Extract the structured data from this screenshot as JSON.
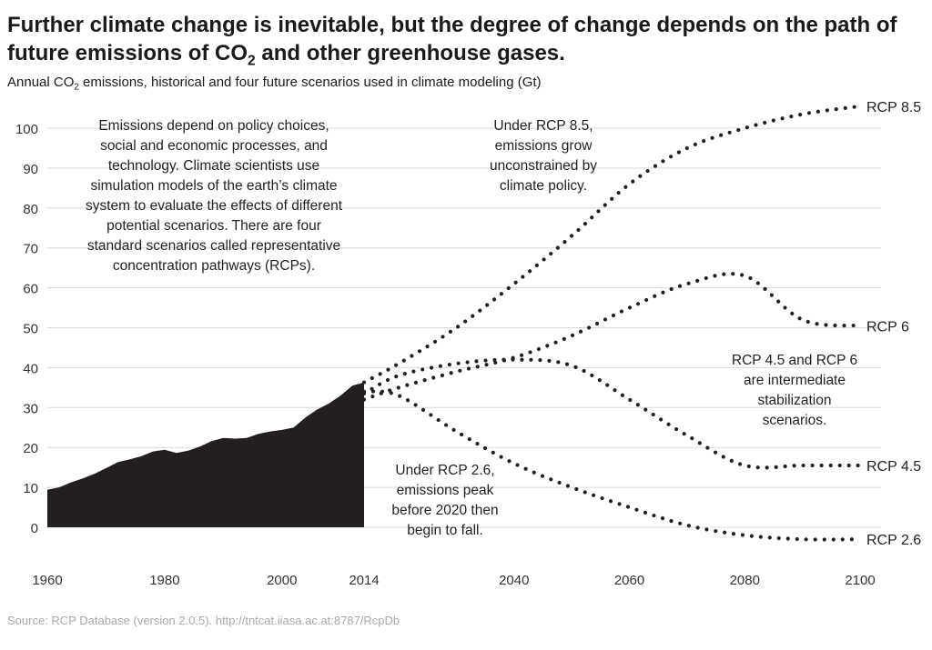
{
  "header": {
    "title_part1": "Further climate change is inevitable, but the degree of change depends on the path of future emissions of CO",
    "title_sub": "2",
    "title_part2": " and other greenhouse gases.",
    "subtitle_part1": "Annual CO",
    "subtitle_sub": "2",
    "subtitle_part2": " emissions, historical and four future scenarios used in climate modeling (Gt)"
  },
  "source": "Source: RCP Database (version 2.0.5). http://tntcat.iiasa.ac.at:8787/RcpDb",
  "colors": {
    "data": "#231f20",
    "grid": "#d9d9d9",
    "axis_text": "#333333",
    "source_text": "#a8a8a8"
  },
  "chart_data": {
    "type": "line",
    "xlabel": "",
    "ylabel": "",
    "xlim": [
      1960,
      2100
    ],
    "ylim": [
      0,
      100
    ],
    "x_ticks": [
      "1960",
      "1980",
      "2000",
      "2014",
      "2040",
      "2060",
      "2080",
      "2100"
    ],
    "y_ticks": [
      "0",
      "10",
      "20",
      "30",
      "40",
      "50",
      "60",
      "70",
      "80",
      "90",
      "100"
    ],
    "grid": true,
    "historical": {
      "style": "filled-area",
      "x": [
        1960,
        1962,
        1964,
        1966,
        1968,
        1970,
        1972,
        1974,
        1976,
        1978,
        1980,
        1982,
        1984,
        1986,
        1988,
        1990,
        1992,
        1994,
        1996,
        1998,
        2000,
        2002,
        2004,
        2006,
        2008,
        2010,
        2012,
        2014
      ],
      "y": [
        9.4,
        10.0,
        11.2,
        12.2,
        13.4,
        14.8,
        16.3,
        17.0,
        17.8,
        19.0,
        19.4,
        18.6,
        19.2,
        20.2,
        21.6,
        22.4,
        22.2,
        22.4,
        23.4,
        24.0,
        24.4,
        25.0,
        27.5,
        29.5,
        31.0,
        33.0,
        35.5,
        36.3
      ]
    },
    "series": [
      {
        "name": "RCP 8.5",
        "style": "dotted",
        "x": [
          2014,
          2020,
          2030,
          2040,
          2050,
          2060,
          2070,
          2080,
          2090,
          2100
        ],
        "y": [
          36.3,
          41,
          50,
          61,
          73,
          86,
          95,
          100,
          103.5,
          105.5
        ]
      },
      {
        "name": "RCP 6",
        "style": "dotted",
        "x": [
          2014,
          2020,
          2030,
          2040,
          2050,
          2060,
          2070,
          2080,
          2090,
          2100
        ],
        "y": [
          32,
          35,
          39,
          42.5,
          48,
          55,
          61,
          63,
          52,
          50.5
        ]
      },
      {
        "name": "RCP 4.5",
        "style": "dotted",
        "x": [
          2014,
          2020,
          2030,
          2040,
          2050,
          2060,
          2070,
          2080,
          2090,
          2100
        ],
        "y": [
          33.5,
          38,
          41,
          42,
          40.5,
          32,
          23,
          15.5,
          15.5,
          15.5
        ]
      },
      {
        "name": "RCP 2.6",
        "style": "dotted",
        "x": [
          2014,
          2020,
          2030,
          2040,
          2050,
          2060,
          2070,
          2080,
          2090,
          2100
        ],
        "y": [
          34,
          33,
          24,
          16,
          10,
          5,
          0.5,
          -2,
          -3,
          -3
        ]
      }
    ],
    "annotations": [
      [
        "Emissions depend on policy choices,",
        "social and economic processes, and",
        "technology. Climate scientists use",
        "simulation models of the earth’s climate",
        "system to evaluate the effects of different",
        "potential scenarios. There are four",
        "standard scenarios called representative",
        "concentration pathways (RCPs)."
      ],
      [
        "Under RCP 8.5,",
        "emissions grow",
        "unconstrained by",
        "climate policy."
      ],
      [
        "RCP 4.5 and RCP 6",
        "are intermediate",
        "stabilization",
        "scenarios."
      ],
      [
        "Under RCP 2.6,",
        "emissions peak",
        "before 2020 then",
        "begin to fall."
      ]
    ]
  }
}
